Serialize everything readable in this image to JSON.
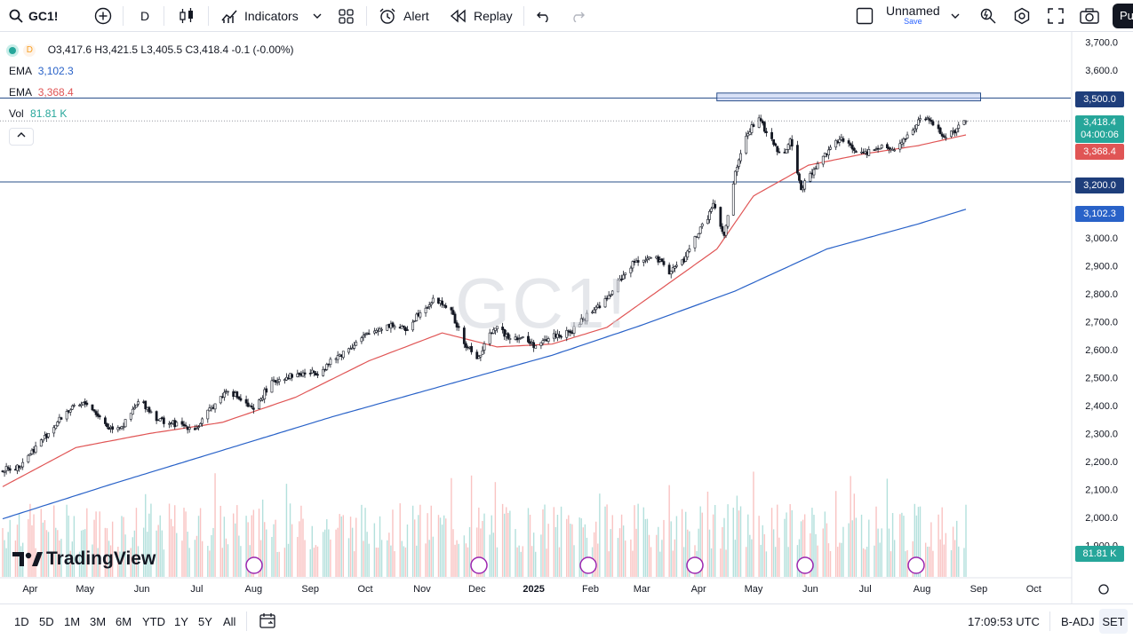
{
  "toolbar": {
    "symbol": "GC1!",
    "interval": "D",
    "indicators_label": "Indicators",
    "alert_label": "Alert",
    "replay_label": "Replay",
    "layout_name": "Unnamed",
    "save_label": "Save",
    "publish_label": "Pu"
  },
  "legend": {
    "interval_badge": "D",
    "ohlc": "O3,417.6  H3,421.5  L3,405.5  C3,418.4  -0.1 (-0.00%)",
    "ema1_label": "EMA",
    "ema1_value": "3,102.3",
    "ema2_label": "EMA",
    "ema2_value": "3,368.4",
    "vol_label": "Vol",
    "vol_value": "81.81 K"
  },
  "watermark": "GC1!",
  "brand": "TradingView",
  "price_labels": {
    "resistance": "3,500.0",
    "last_price": "3,418.4",
    "countdown": "04:00:06",
    "ema50": "3,368.4",
    "support": "3,200.0",
    "ema200": "3,102.3",
    "volume": "81.81 K"
  },
  "colors": {
    "up": "#26a69a",
    "down": "#ef5350",
    "ema_fast": "#e05555",
    "ema_slow": "#2962c8",
    "level_line": "#2a4f8a",
    "resistance_zone": "#b9c8f0"
  },
  "bottombar": {
    "ranges": [
      "1D",
      "5D",
      "1M",
      "3M",
      "6M",
      "YTD",
      "1Y",
      "5Y",
      "All"
    ],
    "clock": "17:09:53 UTC",
    "adj": "B-ADJ",
    "session": "SET"
  },
  "chart_data": {
    "type": "candlestick",
    "instrument": "GC1!",
    "interval": "D",
    "y_axis_ticks": [
      1900,
      2000,
      2100,
      2200,
      2300,
      2400,
      2500,
      2600,
      2700,
      2800,
      2900,
      3000,
      3100,
      3200,
      3300,
      3400,
      3500,
      3600,
      3700
    ],
    "y_tick_labels": [
      "1,900.0",
      "2,000.0",
      "2,100.0",
      "2,200.0",
      "2,300.0",
      "2,400.0",
      "2,500.0",
      "2,600.0",
      "2,700.0",
      "2,800.0",
      "2,900.0",
      "3,000.0",
      "3,100.0",
      "3,200.0",
      "3,300.0",
      "3,400.0",
      "3,500.0",
      "3,600.0",
      "3,700.0"
    ],
    "ylim": [
      1870,
      3730
    ],
    "x_tick_labels": [
      "Apr",
      "May",
      "Jun",
      "Jul",
      "Aug",
      "Sep",
      "Oct",
      "Nov",
      "Dec",
      "2025",
      "Feb",
      "Mar",
      "Apr",
      "May",
      "Jun",
      "Jul",
      "Aug",
      "Sep",
      "Oct"
    ],
    "x_tick_days": [
      15,
      45,
      76,
      106,
      137,
      168,
      198,
      229,
      259,
      290,
      321,
      349,
      380,
      410,
      441,
      471,
      502,
      533,
      563
    ],
    "x_range_days": [
      0,
      575
    ],
    "horizontal_levels": [
      3500,
      3200
    ],
    "resistance_zone": {
      "from_day": 390,
      "to_day": 534,
      "low": 3490,
      "high": 3518
    },
    "close_anchors": {
      "day": [
        0,
        8,
        22,
        35,
        46,
        58,
        66,
        75,
        85,
        96,
        106,
        115,
        123,
        130,
        137,
        145,
        152,
        160,
        172,
        180,
        190,
        198,
        207,
        212,
        220,
        228,
        236,
        244,
        252,
        260,
        268,
        276,
        284,
        292,
        300,
        310,
        320,
        330,
        338,
        346,
        356,
        364,
        372,
        378,
        384,
        388,
        394,
        400,
        405,
        412,
        418,
        425,
        430,
        436,
        444,
        452,
        458,
        464,
        470,
        478,
        488,
        496,
        502,
        508,
        514,
        520,
        526
      ],
      "value": [
        2170,
        2180,
        2280,
        2380,
        2410,
        2320,
        2330,
        2420,
        2350,
        2330,
        2320,
        2400,
        2460,
        2420,
        2380,
        2470,
        2500,
        2510,
        2520,
        2560,
        2610,
        2650,
        2680,
        2690,
        2670,
        2740,
        2780,
        2750,
        2620,
        2570,
        2680,
        2650,
        2640,
        2610,
        2650,
        2660,
        2730,
        2780,
        2860,
        2920,
        2930,
        2880,
        2920,
        3000,
        3060,
        3120,
        3000,
        3230,
        3350,
        3430,
        3370,
        3290,
        3350,
        3180,
        3250,
        3330,
        3350,
        3320,
        3300,
        3330,
        3320,
        3380,
        3430,
        3410,
        3360,
        3380,
        3418.4
      ]
    },
    "ema_fast": {
      "name": "EMA",
      "last": 3368.4,
      "day": [
        0,
        40,
        80,
        120,
        160,
        200,
        240,
        270,
        300,
        330,
        360,
        390,
        410,
        440,
        470,
        500,
        526
      ],
      "value": [
        2110,
        2250,
        2300,
        2340,
        2430,
        2560,
        2660,
        2610,
        2620,
        2680,
        2820,
        2960,
        3150,
        3260,
        3300,
        3330,
        3368.4
      ]
    },
    "ema_slow": {
      "name": "EMA",
      "last": 3102.3,
      "day": [
        0,
        60,
        120,
        180,
        240,
        300,
        350,
        400,
        450,
        500,
        526
      ],
      "value": [
        1995,
        2120,
        2240,
        2360,
        2470,
        2580,
        2690,
        2810,
        2960,
        3050,
        3102.3
      ]
    },
    "volume": {
      "last": 81.81,
      "unit": "K"
    },
    "last_candle": {
      "open": 3417.6,
      "high": 3421.5,
      "low": 3405.5,
      "close": 3418.4,
      "change": -0.1,
      "change_pct": -0.0
    }
  }
}
